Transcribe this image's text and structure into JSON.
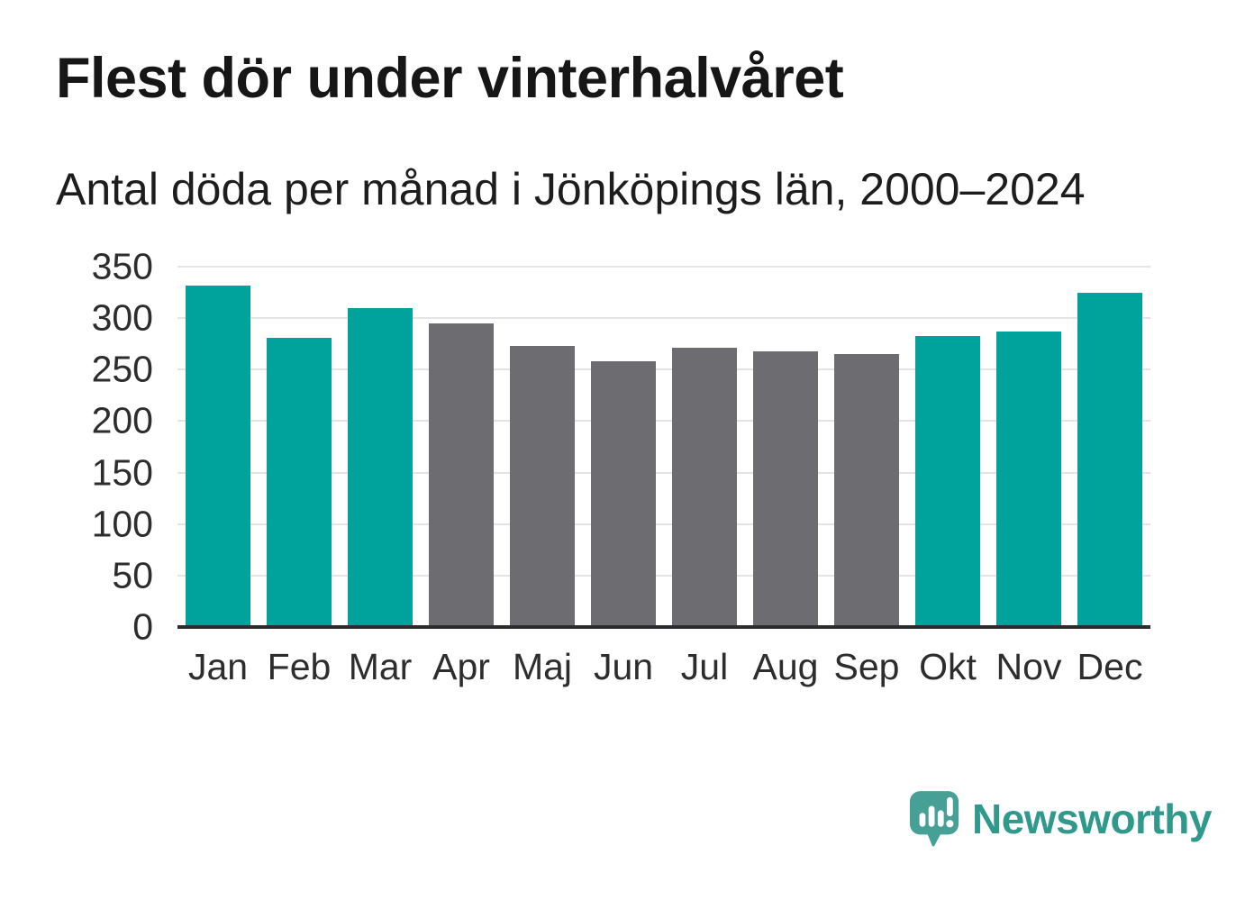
{
  "chart_data": {
    "type": "bar",
    "title": "Flest dör under vinterhalvåret",
    "subtitle": "Antal döda per månad i Jönköpings län, 2000–2024",
    "categories": [
      "Jan",
      "Feb",
      "Mar",
      "Apr",
      "Maj",
      "Jun",
      "Jul",
      "Aug",
      "Sep",
      "Okt",
      "Nov",
      "Dec"
    ],
    "values": [
      332,
      281,
      310,
      295,
      273,
      258,
      271,
      268,
      265,
      283,
      287,
      325
    ],
    "xlabel": "",
    "ylabel": "",
    "ylim": [
      0,
      350
    ],
    "yticks": [
      0,
      50,
      100,
      150,
      200,
      250,
      300,
      350
    ],
    "grid": true,
    "grid_color": "#e4e4e4",
    "axis_line_color": "#2d2d2d",
    "legend": false,
    "palette": {
      "winter_teal": "#00a39b",
      "summer_gray": "#6d6c71"
    },
    "bar_color_keys": [
      "winter_teal",
      "winter_teal",
      "winter_teal",
      "summer_gray",
      "summer_gray",
      "summer_gray",
      "summer_gray",
      "summer_gray",
      "summer_gray",
      "winter_teal",
      "winter_teal",
      "winter_teal"
    ]
  },
  "footer": {
    "brand": "Newsworthy",
    "brand_color": "#2f998c",
    "icon_color": "#47a095",
    "logo_icon": "speech-bubble-bar-chart-icon"
  }
}
